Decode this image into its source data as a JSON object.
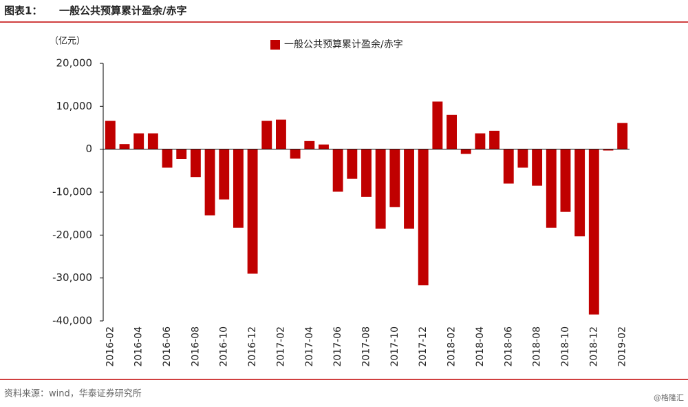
{
  "header": {
    "figure_label": "图表1：",
    "title": "一般公共预算累计盈余/赤字"
  },
  "chart_data": {
    "type": "bar",
    "unit": "（亿元）",
    "categories": [
      "2016-02",
      null,
      "2016-04",
      null,
      "2016-06",
      null,
      "2016-08",
      null,
      "2016-10",
      null,
      "2016-12",
      null,
      "2017-02",
      null,
      "2017-04",
      null,
      "2017-06",
      null,
      "2017-08",
      null,
      "2017-10",
      null,
      "2017-12",
      null,
      "2018-02",
      null,
      "2018-04",
      null,
      "2018-06",
      null,
      "2018-08",
      null,
      "2018-10",
      null,
      "2018-12",
      null,
      "2019-02"
    ],
    "series": [
      {
        "name": "一般公共预算累计盈余/赤字",
        "color": "#c00000",
        "values": [
          6600,
          1200,
          3700,
          3700,
          -4300,
          -2300,
          -6500,
          -15400,
          -11700,
          -18300,
          -29000,
          6600,
          6900,
          -2200,
          1900,
          1100,
          -9900,
          -6900,
          -11100,
          -18500,
          -13500,
          -18500,
          -31700,
          11100,
          8000,
          -1100,
          3700,
          4300,
          -8000,
          -4300,
          -8500,
          -18300,
          -14600,
          -20300,
          -38500,
          -300,
          6100
        ]
      }
    ],
    "ylim": [
      -40000,
      20000
    ],
    "yticks": [
      {
        "value": -40000,
        "label": "-40,000"
      },
      {
        "value": -30000,
        "label": "-30,000"
      },
      {
        "value": -20000,
        "label": "-20,000"
      },
      {
        "value": -10000,
        "label": "-10,000"
      },
      0,
      {
        "value": 10000,
        "label": "10,000"
      },
      {
        "value": 20000,
        "label": "20,000"
      }
    ],
    "legend": "top"
  },
  "footer": {
    "source": "资料来源：wind，华泰证券研究所",
    "watermark": "@格隆汇"
  }
}
